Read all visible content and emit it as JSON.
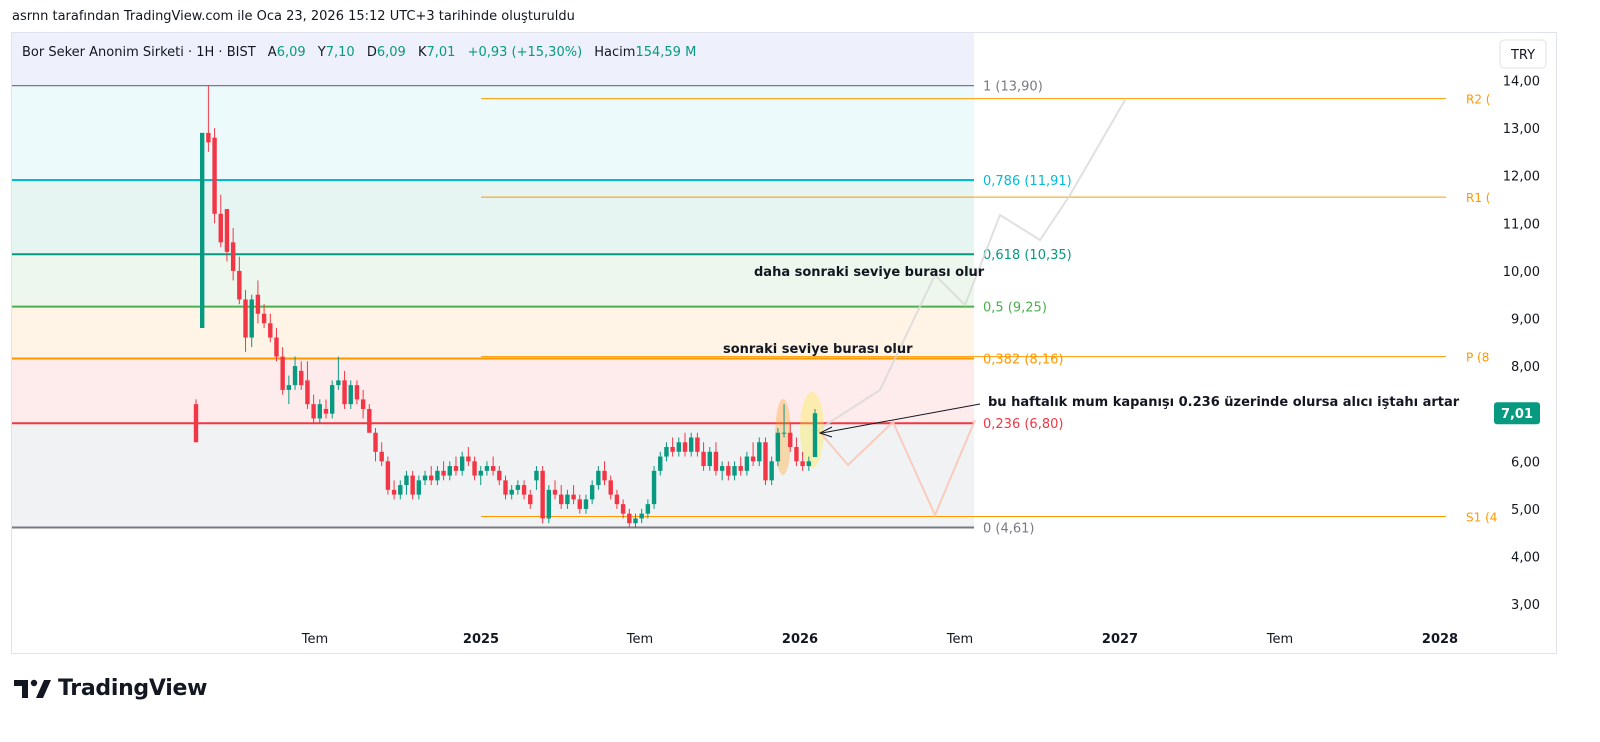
{
  "caption": "asrnn tarafından TradingView.com ile Oca 23, 2026 15:12 UTC+3 tarihinde oluşturuldu",
  "legend": {
    "symbol": "Bor Seker Anonim Sirketi · 1H · BIST",
    "open_label": "A",
    "open": "6,09",
    "high_label": "Y",
    "high": "7,10",
    "low_label": "D",
    "low": "6,09",
    "close_label": "K",
    "close": "7,01",
    "change": "+0,93 (+15,30%)",
    "volume_label": "Hacim",
    "volume": "154,59 M"
  },
  "currency": "TRY",
  "brand": "TradingView",
  "colors": {
    "up": "#089981",
    "down": "#f23645",
    "pivot": "#ff9800",
    "fib_1": "#787b86",
    "fib_0786": "#00bcd4",
    "fib_0618": "#089981",
    "fib_05": "#4caf50",
    "fib_0382": "#ff9800",
    "fib_0236": "#f23645",
    "fib_0": "#787b86"
  },
  "chart_data": {
    "type": "candlestick",
    "x_ticks": [
      "Tem",
      "2025",
      "Tem",
      "2026",
      "Tem",
      "2027",
      "Tem",
      "2028"
    ],
    "y_ticks": [
      "14,00",
      "13,00",
      "12,00",
      "11,00",
      "10,00",
      "9,00",
      "8,00",
      "7,00",
      "6,00",
      "5,00",
      "4,00",
      "3,00"
    ],
    "y_tick_values": [
      14,
      13,
      12,
      11,
      10,
      9,
      8,
      7,
      6,
      5,
      4,
      3
    ],
    "ylim": [
      2.5,
      14.3
    ],
    "last_price": 7.01,
    "last_price_label": "7,01",
    "fib_levels": [
      {
        "ratio": 1,
        "price": 13.9,
        "label": "1 (13,90)",
        "color": "#787b86"
      },
      {
        "ratio": 0.786,
        "price": 11.91,
        "label": "0,786 (11,91)",
        "color": "#00bcd4"
      },
      {
        "ratio": 0.618,
        "price": 10.35,
        "label": "0,618 (10,35)",
        "color": "#089981"
      },
      {
        "ratio": 0.5,
        "price": 9.25,
        "label": "0,5 (9,25)",
        "color": "#4caf50"
      },
      {
        "ratio": 0.382,
        "price": 8.16,
        "label": "0,382 (8,16)",
        "color": "#ff9800"
      },
      {
        "ratio": 0.236,
        "price": 6.8,
        "label": "0,236 (6,80)",
        "color": "#f23645"
      },
      {
        "ratio": 0,
        "price": 4.61,
        "label": "0 (4,61)",
        "color": "#787b86"
      }
    ],
    "pivots": [
      {
        "label": "R2 (",
        "price": 13.62
      },
      {
        "label": "R1 (",
        "price": 11.55
      },
      {
        "label": "P (8",
        "price": 8.2
      },
      {
        "label": "S1 (4",
        "price": 4.84
      }
    ],
    "annotations": [
      {
        "text": "daha sonraki seviye burası olur",
        "price": 10.0
      },
      {
        "text": "sonraki seviye burası olur",
        "price": 8.4
      },
      {
        "text": "bu haftalık mum kapanışı 0.236 üzerinde olursa alıcı iştahı artar",
        "price": 7.3
      }
    ],
    "candles": [
      {
        "o": 7.2,
        "h": 7.3,
        "l": 6.4,
        "c": 6.4
      },
      {
        "o": 8.8,
        "h": 12.9,
        "l": 8.8,
        "c": 12.9
      },
      {
        "o": 12.9,
        "h": 13.9,
        "l": 12.5,
        "c": 12.7
      },
      {
        "o": 12.8,
        "h": 13.0,
        "l": 11.0,
        "c": 11.2
      },
      {
        "o": 11.2,
        "h": 11.6,
        "l": 10.5,
        "c": 10.6
      },
      {
        "o": 11.3,
        "h": 11.3,
        "l": 10.2,
        "c": 10.4
      },
      {
        "o": 10.6,
        "h": 10.9,
        "l": 9.8,
        "c": 10.0
      },
      {
        "o": 10.0,
        "h": 10.3,
        "l": 9.3,
        "c": 9.4
      },
      {
        "o": 9.4,
        "h": 9.6,
        "l": 8.3,
        "c": 8.6
      },
      {
        "o": 8.6,
        "h": 9.5,
        "l": 8.4,
        "c": 9.4
      },
      {
        "o": 9.5,
        "h": 9.8,
        "l": 8.9,
        "c": 9.1
      },
      {
        "o": 9.1,
        "h": 9.3,
        "l": 8.8,
        "c": 8.9
      },
      {
        "o": 8.9,
        "h": 9.1,
        "l": 8.5,
        "c": 8.6
      },
      {
        "o": 8.6,
        "h": 8.8,
        "l": 8.1,
        "c": 8.2
      },
      {
        "o": 8.2,
        "h": 8.4,
        "l": 7.4,
        "c": 7.5
      },
      {
        "o": 7.5,
        "h": 7.8,
        "l": 7.2,
        "c": 7.6
      },
      {
        "o": 7.6,
        "h": 8.2,
        "l": 7.5,
        "c": 8.0
      },
      {
        "o": 7.9,
        "h": 8.1,
        "l": 7.5,
        "c": 7.6
      },
      {
        "o": 7.7,
        "h": 8.1,
        "l": 7.1,
        "c": 7.2
      },
      {
        "o": 7.2,
        "h": 7.4,
        "l": 6.8,
        "c": 6.9
      },
      {
        "o": 6.9,
        "h": 7.3,
        "l": 6.8,
        "c": 7.2
      },
      {
        "o": 7.1,
        "h": 7.3,
        "l": 6.9,
        "c": 7.0
      },
      {
        "o": 7.0,
        "h": 7.7,
        "l": 6.9,
        "c": 7.6
      },
      {
        "o": 7.6,
        "h": 8.2,
        "l": 7.5,
        "c": 7.7
      },
      {
        "o": 7.7,
        "h": 7.9,
        "l": 7.1,
        "c": 7.2
      },
      {
        "o": 7.2,
        "h": 7.7,
        "l": 7.1,
        "c": 7.6
      },
      {
        "o": 7.6,
        "h": 7.7,
        "l": 7.2,
        "c": 7.3
      },
      {
        "o": 7.3,
        "h": 7.5,
        "l": 6.9,
        "c": 7.1
      },
      {
        "o": 7.1,
        "h": 7.2,
        "l": 6.6,
        "c": 6.6
      },
      {
        "o": 6.6,
        "h": 6.7,
        "l": 6.0,
        "c": 6.2
      },
      {
        "o": 6.2,
        "h": 6.4,
        "l": 5.9,
        "c": 6.0
      },
      {
        "o": 6.0,
        "h": 6.1,
        "l": 5.3,
        "c": 5.4
      },
      {
        "o": 5.4,
        "h": 5.6,
        "l": 5.2,
        "c": 5.3
      },
      {
        "o": 5.3,
        "h": 5.6,
        "l": 5.2,
        "c": 5.5
      },
      {
        "o": 5.5,
        "h": 5.8,
        "l": 5.3,
        "c": 5.7
      },
      {
        "o": 5.7,
        "h": 5.8,
        "l": 5.2,
        "c": 5.3
      },
      {
        "o": 5.3,
        "h": 5.7,
        "l": 5.2,
        "c": 5.6
      },
      {
        "o": 5.6,
        "h": 5.8,
        "l": 5.5,
        "c": 5.7
      },
      {
        "o": 5.7,
        "h": 5.9,
        "l": 5.5,
        "c": 5.6
      },
      {
        "o": 5.6,
        "h": 5.9,
        "l": 5.5,
        "c": 5.8
      },
      {
        "o": 5.8,
        "h": 6.0,
        "l": 5.6,
        "c": 5.7
      },
      {
        "o": 5.7,
        "h": 6.0,
        "l": 5.6,
        "c": 5.9
      },
      {
        "o": 5.9,
        "h": 6.1,
        "l": 5.7,
        "c": 5.8
      },
      {
        "o": 5.8,
        "h": 6.2,
        "l": 5.7,
        "c": 6.1
      },
      {
        "o": 6.1,
        "h": 6.3,
        "l": 5.9,
        "c": 6.0
      },
      {
        "o": 6.0,
        "h": 6.1,
        "l": 5.6,
        "c": 5.7
      },
      {
        "o": 5.7,
        "h": 5.9,
        "l": 5.5,
        "c": 5.8
      },
      {
        "o": 5.8,
        "h": 6.0,
        "l": 5.7,
        "c": 5.9
      },
      {
        "o": 5.9,
        "h": 6.1,
        "l": 5.7,
        "c": 5.8
      },
      {
        "o": 5.8,
        "h": 5.9,
        "l": 5.5,
        "c": 5.6
      },
      {
        "o": 5.6,
        "h": 5.7,
        "l": 5.2,
        "c": 5.3
      },
      {
        "o": 5.3,
        "h": 5.5,
        "l": 5.2,
        "c": 5.4
      },
      {
        "o": 5.4,
        "h": 5.6,
        "l": 5.3,
        "c": 5.5
      },
      {
        "o": 5.5,
        "h": 5.6,
        "l": 5.2,
        "c": 5.3
      },
      {
        "o": 5.3,
        "h": 5.4,
        "l": 5.0,
        "c": 5.1
      },
      {
        "o": 5.6,
        "h": 5.9,
        "l": 5.4,
        "c": 5.8
      },
      {
        "o": 5.8,
        "h": 5.9,
        "l": 4.7,
        "c": 4.8
      },
      {
        "o": 4.8,
        "h": 5.5,
        "l": 4.7,
        "c": 5.4
      },
      {
        "o": 5.4,
        "h": 5.6,
        "l": 5.2,
        "c": 5.3
      },
      {
        "o": 5.3,
        "h": 5.5,
        "l": 5.0,
        "c": 5.1
      },
      {
        "o": 5.1,
        "h": 5.4,
        "l": 5.0,
        "c": 5.3
      },
      {
        "o": 5.3,
        "h": 5.5,
        "l": 5.1,
        "c": 5.2
      },
      {
        "o": 5.2,
        "h": 5.3,
        "l": 4.9,
        "c": 5.0
      },
      {
        "o": 5.0,
        "h": 5.3,
        "l": 4.9,
        "c": 5.2
      },
      {
        "o": 5.2,
        "h": 5.6,
        "l": 5.1,
        "c": 5.5
      },
      {
        "o": 5.5,
        "h": 5.9,
        "l": 5.4,
        "c": 5.8
      },
      {
        "o": 5.8,
        "h": 6.0,
        "l": 5.5,
        "c": 5.6
      },
      {
        "o": 5.6,
        "h": 5.7,
        "l": 5.2,
        "c": 5.3
      },
      {
        "o": 5.3,
        "h": 5.4,
        "l": 5.0,
        "c": 5.1
      },
      {
        "o": 5.1,
        "h": 5.2,
        "l": 4.8,
        "c": 4.9
      },
      {
        "o": 4.9,
        "h": 5.0,
        "l": 4.6,
        "c": 4.7
      },
      {
        "o": 4.7,
        "h": 4.9,
        "l": 4.6,
        "c": 4.8
      },
      {
        "o": 4.8,
        "h": 5.0,
        "l": 4.7,
        "c": 4.9
      },
      {
        "o": 4.9,
        "h": 5.2,
        "l": 4.8,
        "c": 5.1
      },
      {
        "o": 5.1,
        "h": 5.9,
        "l": 5.0,
        "c": 5.8
      },
      {
        "o": 5.8,
        "h": 6.2,
        "l": 5.7,
        "c": 6.1
      },
      {
        "o": 6.1,
        "h": 6.4,
        "l": 6.0,
        "c": 6.3
      },
      {
        "o": 6.3,
        "h": 6.5,
        "l": 6.1,
        "c": 6.2
      },
      {
        "o": 6.2,
        "h": 6.5,
        "l": 6.1,
        "c": 6.4
      },
      {
        "o": 6.4,
        "h": 6.6,
        "l": 6.1,
        "c": 6.2
      },
      {
        "o": 6.2,
        "h": 6.6,
        "l": 6.1,
        "c": 6.5
      },
      {
        "o": 6.5,
        "h": 6.6,
        "l": 6.1,
        "c": 6.2
      },
      {
        "o": 6.2,
        "h": 6.4,
        "l": 5.8,
        "c": 5.9
      },
      {
        "o": 5.9,
        "h": 6.3,
        "l": 5.8,
        "c": 6.2
      },
      {
        "o": 6.2,
        "h": 6.4,
        "l": 5.7,
        "c": 5.8
      },
      {
        "o": 5.8,
        "h": 6.0,
        "l": 5.6,
        "c": 5.9
      },
      {
        "o": 5.9,
        "h": 6.0,
        "l": 5.6,
        "c": 5.7
      },
      {
        "o": 5.7,
        "h": 6.0,
        "l": 5.6,
        "c": 5.9
      },
      {
        "o": 5.9,
        "h": 6.1,
        "l": 5.7,
        "c": 5.8
      },
      {
        "o": 5.8,
        "h": 6.2,
        "l": 5.7,
        "c": 6.1
      },
      {
        "o": 6.1,
        "h": 6.4,
        "l": 5.9,
        "c": 6.0
      },
      {
        "o": 6.0,
        "h": 6.5,
        "l": 5.9,
        "c": 6.4
      },
      {
        "o": 6.4,
        "h": 6.5,
        "l": 5.5,
        "c": 5.6
      },
      {
        "o": 5.6,
        "h": 6.1,
        "l": 5.5,
        "c": 6.0
      },
      {
        "o": 6.0,
        "h": 6.7,
        "l": 5.9,
        "c": 6.6
      },
      {
        "o": 6.6,
        "h": 7.2,
        "l": 6.5,
        "c": 6.6
      },
      {
        "o": 6.6,
        "h": 6.8,
        "l": 6.2,
        "c": 6.3
      },
      {
        "o": 6.3,
        "h": 6.5,
        "l": 5.9,
        "c": 6.0
      },
      {
        "o": 6.0,
        "h": 6.2,
        "l": 5.8,
        "c": 5.9
      },
      {
        "o": 5.9,
        "h": 6.1,
        "l": 5.8,
        "c": 6.0
      },
      {
        "o": 6.09,
        "h": 7.1,
        "l": 6.09,
        "c": 7.01
      }
    ]
  }
}
